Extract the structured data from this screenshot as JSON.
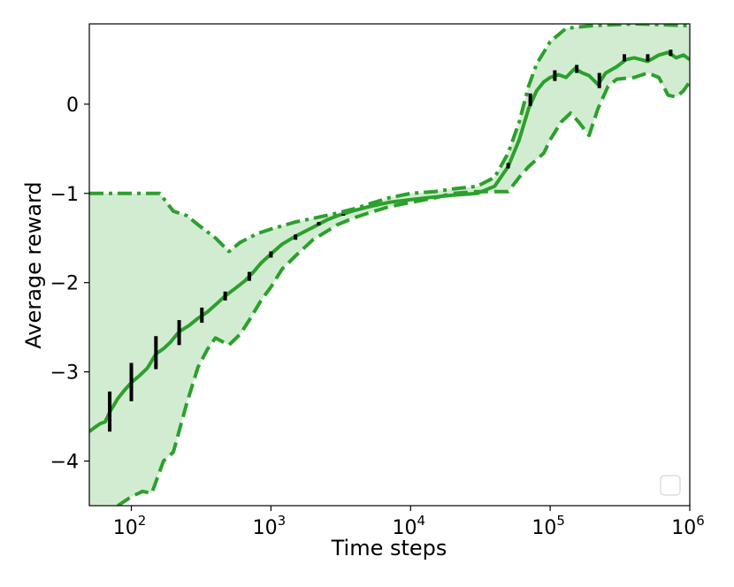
{
  "chart_data": {
    "type": "line",
    "xlabel": "Time steps",
    "ylabel": "Average reward",
    "xscale": "log",
    "xlim": [
      50,
      1000000
    ],
    "ylim": [
      -4.5,
      0.9
    ],
    "grid": false,
    "legend": "bottom-right (empty)",
    "colors": {
      "line": "#2ca02c",
      "fill": "#d2ecd2",
      "error_bar": "#000000"
    },
    "x_ticks": [
      {
        "value": 100,
        "base": "10",
        "exp": "2"
      },
      {
        "value": 1000,
        "base": "10",
        "exp": "3"
      },
      {
        "value": 10000,
        "base": "10",
        "exp": "4"
      },
      {
        "value": 100000,
        "base": "10",
        "exp": "5"
      },
      {
        "value": 1000000,
        "base": "10",
        "exp": "6"
      }
    ],
    "y_ticks": [
      {
        "value": -4,
        "label": "−4"
      },
      {
        "value": -3,
        "label": "−3"
      },
      {
        "value": -2,
        "label": "−2"
      },
      {
        "value": -1,
        "label": "−1"
      },
      {
        "value": 0,
        "label": "0"
      }
    ],
    "series": [
      {
        "style": "solid",
        "points": [
          [
            50,
            -3.67
          ],
          [
            55,
            -3.62
          ],
          [
            60,
            -3.58
          ],
          [
            65,
            -3.56
          ],
          [
            70,
            -3.45
          ],
          [
            80,
            -3.3
          ],
          [
            90,
            -3.2
          ],
          [
            100,
            -3.12
          ],
          [
            115,
            -3.04
          ],
          [
            130,
            -2.96
          ],
          [
            150,
            -2.8
          ],
          [
            170,
            -2.74
          ],
          [
            190,
            -2.67
          ],
          [
            220,
            -2.55
          ],
          [
            260,
            -2.48
          ],
          [
            300,
            -2.4
          ],
          [
            350,
            -2.33
          ],
          [
            400,
            -2.25
          ],
          [
            470,
            -2.15
          ],
          [
            550,
            -2.07
          ],
          [
            650,
            -1.98
          ],
          [
            750,
            -1.88
          ],
          [
            850,
            -1.78
          ],
          [
            1000,
            -1.68
          ],
          [
            1200,
            -1.57
          ],
          [
            1500,
            -1.48
          ],
          [
            2000,
            -1.38
          ],
          [
            2500,
            -1.3
          ],
          [
            3000,
            -1.25
          ],
          [
            4000,
            -1.19
          ],
          [
            5000,
            -1.15
          ],
          [
            7000,
            -1.1
          ],
          [
            10000,
            -1.07
          ],
          [
            15000,
            -1.04
          ],
          [
            20000,
            -1.02
          ],
          [
            30000,
            -1.0
          ],
          [
            40000,
            -0.92
          ],
          [
            50000,
            -0.7
          ],
          [
            60000,
            -0.4
          ],
          [
            70000,
            -0.05
          ],
          [
            80000,
            0.15
          ],
          [
            90000,
            0.25
          ],
          [
            100000,
            0.3
          ],
          [
            115000,
            0.33
          ],
          [
            130000,
            0.3
          ],
          [
            150000,
            0.4
          ],
          [
            170000,
            0.35
          ],
          [
            190000,
            0.32
          ],
          [
            220000,
            0.22
          ],
          [
            250000,
            0.35
          ],
          [
            300000,
            0.42
          ],
          [
            350000,
            0.5
          ],
          [
            400000,
            0.52
          ],
          [
            500000,
            0.48
          ],
          [
            600000,
            0.55
          ],
          [
            700000,
            0.58
          ],
          [
            800000,
            0.52
          ],
          [
            900000,
            0.55
          ],
          [
            1000000,
            0.5
          ]
        ]
      },
      {
        "style": "dashdot",
        "points": [
          [
            50,
            -1.0
          ],
          [
            160,
            -1.0
          ],
          [
            200,
            -1.2
          ],
          [
            250,
            -1.25
          ],
          [
            300,
            -1.35
          ],
          [
            400,
            -1.5
          ],
          [
            500,
            -1.65
          ],
          [
            600,
            -1.55
          ],
          [
            800,
            -1.45
          ],
          [
            1000,
            -1.4
          ],
          [
            1500,
            -1.32
          ],
          [
            2000,
            -1.28
          ],
          [
            3000,
            -1.22
          ],
          [
            4000,
            -1.17
          ],
          [
            5000,
            -1.12
          ],
          [
            7000,
            -1.05
          ],
          [
            10000,
            -1.0
          ],
          [
            15000,
            -0.98
          ],
          [
            20000,
            -0.95
          ],
          [
            30000,
            -0.92
          ],
          [
            40000,
            -0.82
          ],
          [
            50000,
            -0.55
          ],
          [
            60000,
            -0.2
          ],
          [
            70000,
            0.2
          ],
          [
            80000,
            0.45
          ],
          [
            100000,
            0.7
          ],
          [
            130000,
            0.85
          ],
          [
            200000,
            0.88
          ],
          [
            400000,
            0.9
          ],
          [
            1000000,
            0.88
          ]
        ]
      },
      {
        "style": "dashed",
        "points": [
          [
            80,
            -4.5
          ],
          [
            100,
            -4.4
          ],
          [
            120,
            -4.34
          ],
          [
            140,
            -4.36
          ],
          [
            170,
            -4.0
          ],
          [
            200,
            -3.9
          ],
          [
            250,
            -3.35
          ],
          [
            300,
            -2.95
          ],
          [
            350,
            -2.75
          ],
          [
            400,
            -2.62
          ],
          [
            500,
            -2.7
          ],
          [
            600,
            -2.58
          ],
          [
            700,
            -2.42
          ],
          [
            850,
            -2.2
          ],
          [
            1000,
            -2.05
          ],
          [
            1200,
            -1.85
          ],
          [
            1500,
            -1.7
          ],
          [
            2000,
            -1.52
          ],
          [
            3000,
            -1.35
          ],
          [
            4000,
            -1.27
          ],
          [
            5000,
            -1.22
          ],
          [
            7000,
            -1.15
          ],
          [
            10000,
            -1.1
          ],
          [
            15000,
            -1.05
          ],
          [
            20000,
            -1.0
          ],
          [
            30000,
            -0.98
          ],
          [
            40000,
            -0.98
          ],
          [
            50000,
            -0.98
          ],
          [
            60000,
            -0.82
          ],
          [
            70000,
            -0.7
          ],
          [
            80000,
            -0.62
          ],
          [
            90000,
            -0.55
          ],
          [
            100000,
            -0.4
          ],
          [
            120000,
            -0.2
          ],
          [
            140000,
            -0.1
          ],
          [
            160000,
            -0.2
          ],
          [
            190000,
            -0.35
          ],
          [
            220000,
            -0.05
          ],
          [
            260000,
            0.2
          ],
          [
            300000,
            0.28
          ],
          [
            400000,
            0.3
          ],
          [
            500000,
            0.35
          ],
          [
            600000,
            0.3
          ],
          [
            700000,
            0.1
          ],
          [
            800000,
            0.08
          ],
          [
            900000,
            0.15
          ],
          [
            1000000,
            0.25
          ]
        ]
      }
    ],
    "error_bars": [
      {
        "x": 70,
        "low": -3.67,
        "high": -3.22
      },
      {
        "x": 100,
        "low": -3.33,
        "high": -2.9
      },
      {
        "x": 150,
        "low": -2.97,
        "high": -2.6
      },
      {
        "x": 220,
        "low": -2.7,
        "high": -2.42
      },
      {
        "x": 320,
        "low": -2.45,
        "high": -2.28
      },
      {
        "x": 470,
        "low": -2.2,
        "high": -2.1
      },
      {
        "x": 700,
        "low": -1.98,
        "high": -1.88
      },
      {
        "x": 1000,
        "low": -1.72,
        "high": -1.65
      },
      {
        "x": 1500,
        "low": -1.52,
        "high": -1.46
      },
      {
        "x": 2200,
        "low": -1.36,
        "high": -1.32
      },
      {
        "x": 3300,
        "low": -1.25,
        "high": -1.23
      },
      {
        "x": 50000,
        "low": -0.72,
        "high": -0.66
      },
      {
        "x": 72000,
        "low": -0.02,
        "high": 0.12
      },
      {
        "x": 108000,
        "low": 0.26,
        "high": 0.38
      },
      {
        "x": 155000,
        "low": 0.35,
        "high": 0.44
      },
      {
        "x": 225000,
        "low": 0.18,
        "high": 0.35
      },
      {
        "x": 340000,
        "low": 0.48,
        "high": 0.56
      },
      {
        "x": 500000,
        "low": 0.48,
        "high": 0.56
      },
      {
        "x": 730000,
        "low": 0.54,
        "high": 0.61
      }
    ]
  }
}
